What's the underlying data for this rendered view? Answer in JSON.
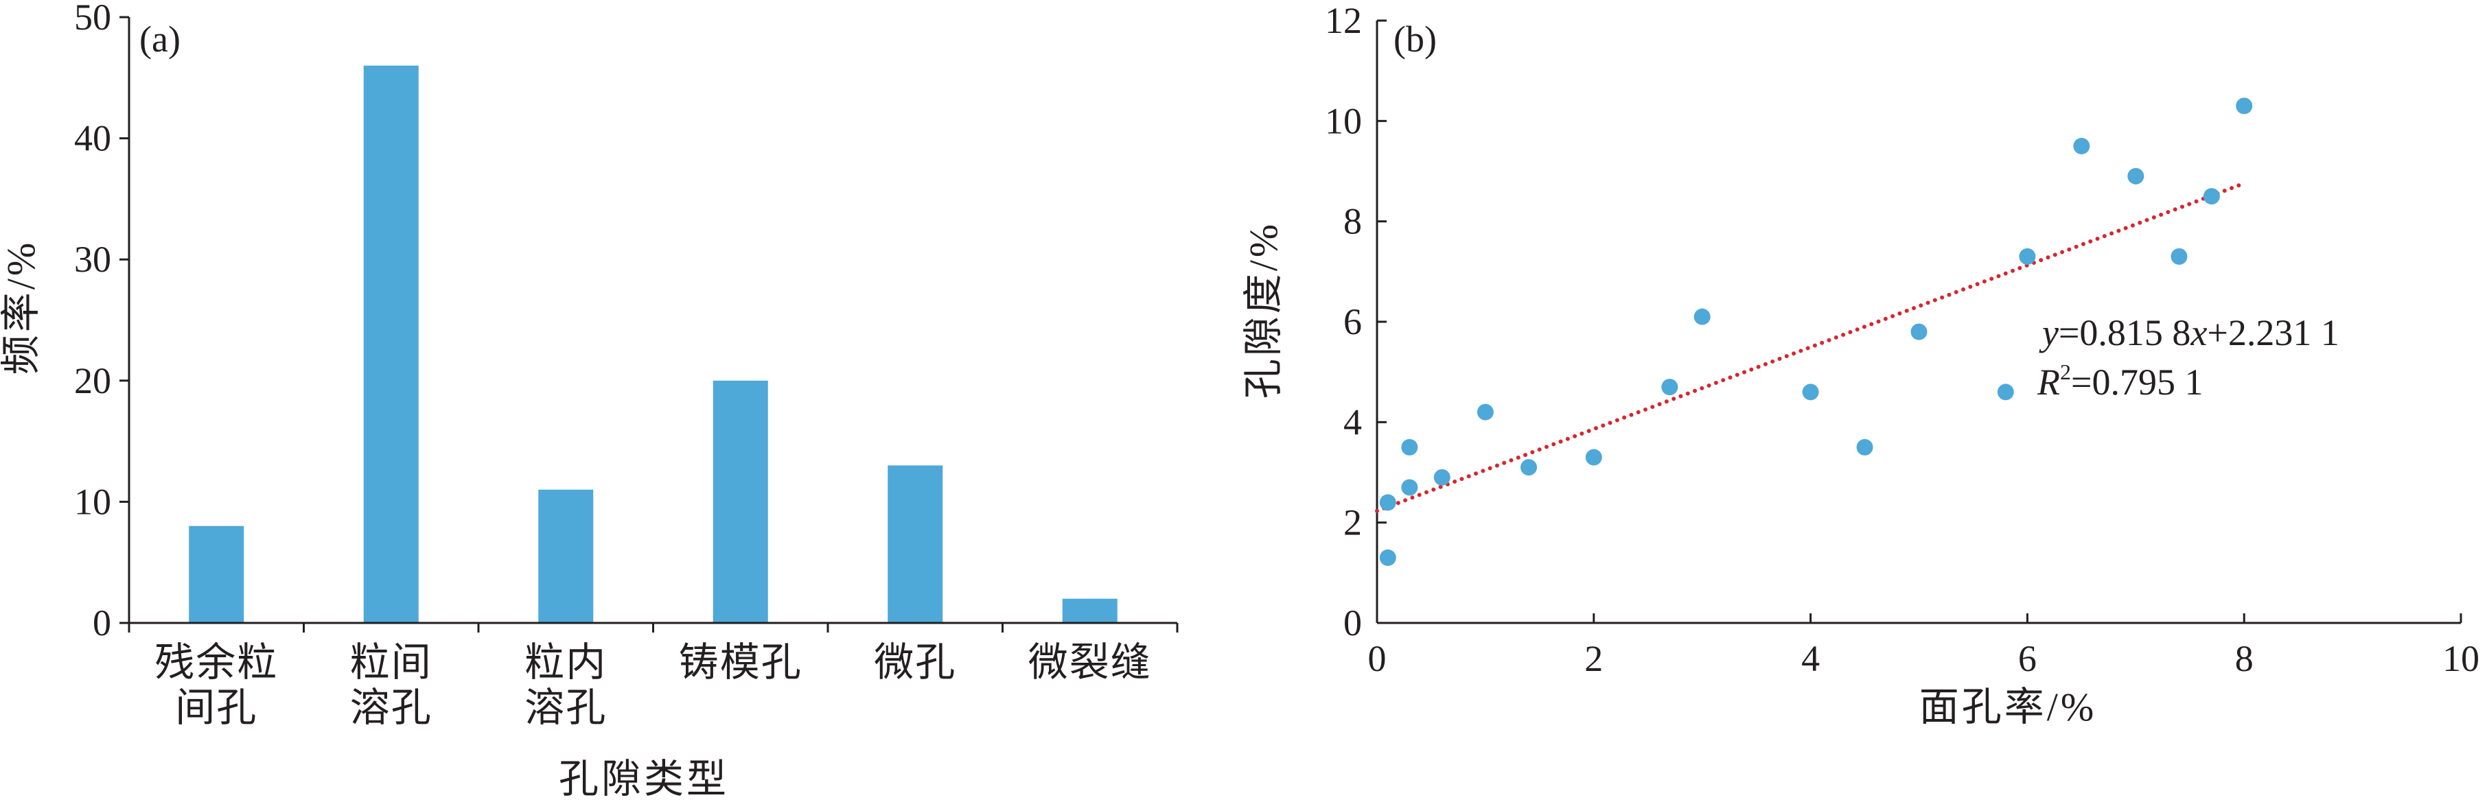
{
  "chart_data": [
    {
      "type": "bar",
      "panel_label": "(a)",
      "xlabel": "孔隙类型",
      "ylabel": "频率/%",
      "ylim": [
        0,
        50
      ],
      "yticks": [
        "0",
        "10",
        "20",
        "30",
        "40",
        "50"
      ],
      "categories": [
        [
          "残余粒",
          "间孔"
        ],
        [
          "粒间",
          "溶孔"
        ],
        [
          "粒内",
          "溶孔"
        ],
        [
          "铸模孔"
        ],
        [
          "微孔"
        ],
        [
          "微裂缝"
        ]
      ],
      "values": [
        8,
        46,
        11,
        20,
        13,
        2
      ],
      "bar_color": "#4ea8d8",
      "grid": false
    },
    {
      "type": "scatter",
      "panel_label": "(b)",
      "xlabel": "面孔率/%",
      "ylabel": "孔隙度/%",
      "xlim": [
        0,
        10
      ],
      "ylim": [
        0,
        12
      ],
      "xticks": [
        "0",
        "2",
        "4",
        "6",
        "8",
        "10"
      ],
      "yticks": [
        "0",
        "2",
        "4",
        "6",
        "8",
        "10",
        "12"
      ],
      "points": [
        [
          0.1,
          1.3
        ],
        [
          0.1,
          2.4
        ],
        [
          0.3,
          2.7
        ],
        [
          0.3,
          3.5
        ],
        [
          0.6,
          2.9
        ],
        [
          1.0,
          4.2
        ],
        [
          1.4,
          3.1
        ],
        [
          2.0,
          3.3
        ],
        [
          2.7,
          4.7
        ],
        [
          3.0,
          6.1
        ],
        [
          4.0,
          4.6
        ],
        [
          4.5,
          3.5
        ],
        [
          5.0,
          5.8
        ],
        [
          5.8,
          4.6
        ],
        [
          6.0,
          7.3
        ],
        [
          6.5,
          9.5
        ],
        [
          7.0,
          8.9
        ],
        [
          7.4,
          7.3
        ],
        [
          7.7,
          8.5
        ],
        [
          8.0,
          10.3
        ]
      ],
      "point_color": "#4ea8d8",
      "fit": {
        "slope": 0.8158,
        "intercept": 2.2311,
        "x_range": [
          0,
          8
        ],
        "color": "#d7262e",
        "style": "dotted",
        "equation": {
          "y": "y",
          "eq_left": "=0.815 8",
          "x": "x",
          "eq_right": "+2.231 1"
        },
        "r2": {
          "r": "R",
          "sup": "2",
          "value": "=0.795 1"
        }
      },
      "grid": false
    }
  ]
}
